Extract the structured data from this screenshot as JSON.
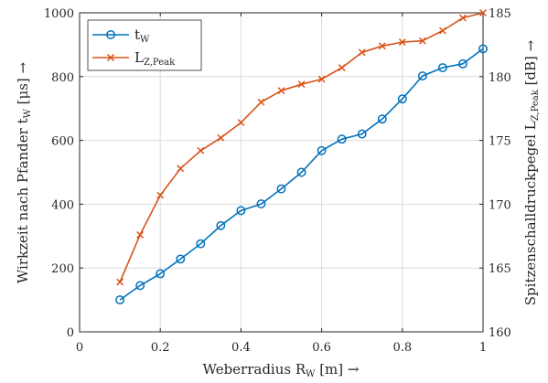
{
  "chart_data": {
    "type": "line",
    "x": [
      0.1,
      0.15,
      0.2,
      0.25,
      0.3,
      0.35,
      0.4,
      0.45,
      0.5,
      0.55,
      0.6,
      0.65,
      0.7,
      0.75,
      0.8,
      0.85,
      0.9,
      0.95,
      1.0
    ],
    "xlabel": "Weberradius R_W [m] →",
    "ylabel_left": "Wirkzeit nach Pfander t_W [μs] →",
    "ylabel_right": "Spitzenschalldruckpegel L_Z,Peak [dB] →",
    "xlim": [
      0,
      1
    ],
    "ylim_left": [
      0,
      1000
    ],
    "ylim_right": [
      160,
      185
    ],
    "x_ticks": [
      "0",
      "0.2",
      "0.4",
      "0.6",
      "0.8",
      "1"
    ],
    "y_ticks_left": [
      "0",
      "200",
      "400",
      "600",
      "800",
      "1000"
    ],
    "y_ticks_right": [
      "160",
      "165",
      "170",
      "175",
      "180",
      "185"
    ],
    "grid": true,
    "legend_position": "top-left",
    "series": [
      {
        "name": "t_W",
        "axis": "left",
        "marker": "circle",
        "color": "#0072BD",
        "values": [
          100,
          145,
          182,
          228,
          276,
          333,
          380,
          401,
          448,
          500,
          568,
          604,
          620,
          667,
          730,
          802,
          828,
          840,
          887
        ]
      },
      {
        "name": "L_Z,Peak",
        "axis": "right",
        "marker": "x",
        "color": "#D95319",
        "values": [
          163.9,
          167.6,
          170.7,
          172.8,
          174.2,
          175.2,
          176.4,
          178.0,
          178.9,
          179.4,
          179.8,
          180.7,
          181.9,
          182.4,
          182.7,
          182.8,
          183.6,
          184.6,
          185.0
        ]
      }
    ]
  }
}
